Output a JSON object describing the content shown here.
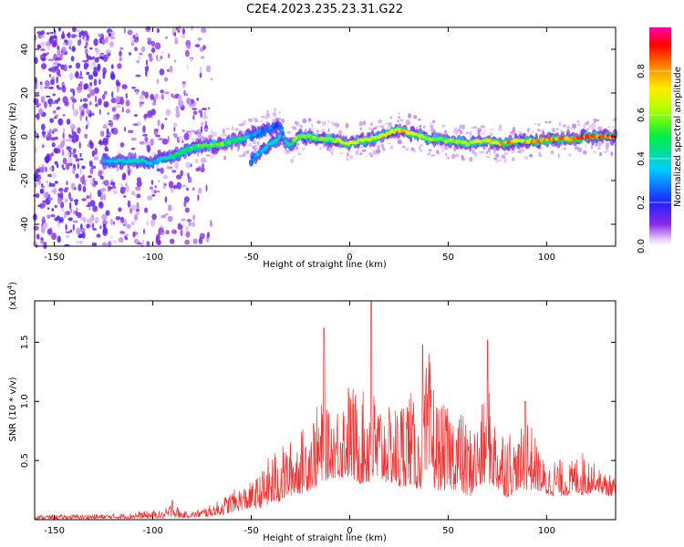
{
  "figure": {
    "title": "C2E4.2023.235.23.31.G22"
  },
  "colors": {
    "signal": "#ee3333",
    "accent": "#ff0000"
  },
  "chart_data": [
    {
      "type": "heatmap",
      "name": "spectrogram",
      "xlabel": "Height of straight line (km)",
      "ylabel": "Frequency (Hz)",
      "xlim": [
        -160,
        135
      ],
      "ylim": [
        -50,
        50
      ],
      "x_ticks": [
        -150,
        -100,
        -50,
        0,
        50,
        100
      ],
      "y_ticks": [
        -40,
        -20,
        0,
        20,
        40
      ],
      "colorbar": {
        "label": "Normalized spectral amplitude",
        "range": [
          0,
          1
        ],
        "ticks": [
          "0.0",
          "0.2",
          "0.4",
          "0.6",
          "0.8"
        ],
        "colormap": "rainbow: white-violet-blue-cyan-green-yellow-orange-red-magenta"
      },
      "ridge": {
        "x": [
          -125,
          -115,
          -105,
          -100,
          -95,
          -90,
          -85,
          -80,
          -75,
          -70,
          -65,
          -60,
          -55,
          -50,
          -45,
          -40,
          -37,
          -35,
          -33,
          -30,
          -28,
          -25,
          -20,
          -15,
          -10,
          -5,
          0,
          5,
          10,
          15,
          20,
          25,
          30,
          35,
          40,
          45,
          50,
          55,
          60,
          65,
          70,
          75,
          80,
          85,
          90,
          95,
          100,
          105,
          110,
          115,
          120,
          125,
          130,
          135
        ],
        "freq": [
          -11,
          -11,
          -11,
          -12,
          -10,
          -9,
          -7,
          -5,
          -4,
          -4,
          -3,
          -2,
          -1,
          1,
          2,
          4,
          5,
          4,
          -2,
          -4,
          -1,
          0,
          0,
          -1,
          -1,
          -2,
          -3,
          -2,
          -1,
          0,
          2,
          3,
          2,
          1,
          -1,
          -1,
          -2,
          -2,
          -3,
          -2,
          -2,
          -3,
          -3,
          -2,
          -2,
          -2,
          -1,
          -1,
          -1,
          -1,
          0,
          0,
          0,
          0
        ],
        "amp": [
          0.35,
          0.4,
          0.45,
          0.35,
          0.4,
          0.45,
          0.5,
          0.55,
          0.55,
          0.6,
          0.6,
          0.55,
          0.5,
          0.35,
          0.3,
          0.3,
          0.2,
          0.3,
          0.4,
          0.45,
          0.6,
          0.65,
          0.6,
          0.6,
          0.65,
          0.7,
          0.7,
          0.7,
          0.72,
          0.7,
          0.75,
          0.78,
          0.75,
          0.72,
          0.65,
          0.6,
          0.6,
          0.65,
          0.65,
          0.7,
          0.72,
          0.8,
          0.85,
          0.8,
          0.8,
          0.85,
          0.85,
          0.85,
          0.85,
          0.9,
          0.92,
          0.92,
          0.9,
          0.9
        ]
      },
      "branch": {
        "x": [
          -50,
          -45,
          -40,
          -35
        ],
        "freq": [
          -11,
          -7,
          -3,
          0
        ],
        "amp": [
          0.3,
          0.35,
          0.4,
          0.45
        ]
      },
      "noise_region": [
        -160,
        -80
      ]
    },
    {
      "type": "line",
      "name": "snr",
      "xlabel": "Height of straight line (km)",
      "ylabel": "SNR (10 * v/v)",
      "multiplier": "(x10",
      "multiplier_exp": "4",
      "multiplier_close": ")",
      "xlim": [
        -160,
        135
      ],
      "ylim": [
        0,
        18500
      ],
      "x_ticks": [
        -150,
        -100,
        -50,
        0,
        50,
        100
      ],
      "y_ticks": [
        "0.5",
        "1.0",
        "1.5"
      ],
      "y_tick_values": [
        5000,
        10000,
        15000
      ],
      "series": [
        {
          "color": "#ee3333",
          "envelope_x": [
            -160,
            -120,
            -100,
            -95,
            -90,
            -85,
            -80,
            -75,
            -70,
            -65,
            -60,
            -55,
            -50,
            -45,
            -40,
            -35,
            -30,
            -25,
            -20,
            -15,
            -10,
            -5,
            0,
            5,
            10,
            15,
            20,
            25,
            30,
            35,
            40,
            45,
            50,
            55,
            60,
            65,
            70,
            75,
            80,
            85,
            90,
            95,
            100,
            105,
            110,
            115,
            120,
            125,
            130,
            135
          ],
          "envelope_max": [
            400,
            500,
            800,
            700,
            1600,
            700,
            700,
            1000,
            1300,
            1800,
            2500,
            2800,
            3200,
            4000,
            5800,
            6200,
            6800,
            7500,
            9000,
            10000,
            9000,
            10500,
            12000,
            10500,
            11500,
            10500,
            9500,
            10000,
            12000,
            8000,
            14500,
            10000,
            9500,
            10000,
            8000,
            8500,
            11500,
            8000,
            8500,
            6500,
            9500,
            6500,
            4500,
            5500,
            4500,
            5500,
            6000,
            4500,
            4000,
            3500
          ],
          "envelope_min": [
            50,
            80,
            100,
            100,
            150,
            150,
            200,
            200,
            300,
            400,
            600,
            800,
            900,
            1000,
            1200,
            1500,
            2000,
            2200,
            2500,
            3000,
            3500,
            3500,
            3500,
            3000,
            3000,
            3000,
            3200,
            2500,
            3000,
            2500,
            2800,
            2500,
            2500,
            2500,
            1800,
            2500,
            3000,
            2500,
            1800,
            2500,
            2500,
            2500,
            2000,
            2000,
            2000,
            2200,
            2000,
            2500,
            2000,
            2000
          ],
          "peaks": [
            {
              "x": -90,
              "y": 1600
            },
            {
              "x": -13,
              "y": 16200
            },
            {
              "x": 11,
              "y": 18500
            },
            {
              "x": 37,
              "y": 14800
            },
            {
              "x": 70,
              "y": 15200
            },
            {
              "x": 89,
              "y": 10000
            }
          ]
        }
      ]
    }
  ]
}
